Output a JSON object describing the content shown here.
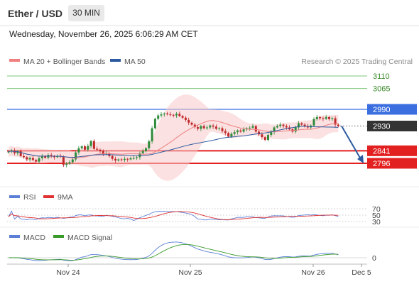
{
  "header": {
    "title": "Ether / USD",
    "timeframe": "30 MIN",
    "datetime": "Wednesday, November 26, 2025 6:06:29 AM CET"
  },
  "legend": {
    "main": [
      {
        "label": "MA 20 + Bollinger Bands",
        "color": "#f08080"
      },
      {
        "label": "MA 50",
        "color": "#2b5aa0"
      }
    ],
    "rsi": [
      {
        "label": "RSI",
        "color": "#5b7fd6"
      },
      {
        "label": "9MA",
        "color": "#e03030"
      }
    ],
    "macd": [
      {
        "label": "MACD",
        "color": "#5b7fd6"
      },
      {
        "label": "MACD Signal",
        "color": "#3a9a2a"
      }
    ]
  },
  "watermark": "Research © 2025 Trading Central",
  "colors": {
    "bull": "#2e8b3a",
    "bear": "#c0282a",
    "resistance": "#7dc47d",
    "pivot": "#3b6fe0",
    "support": "#e32020",
    "current": "#333333"
  },
  "chart_data": {
    "type": "candlestick",
    "ylim": [
      2700,
      3200
    ],
    "levels": [
      {
        "value": 3110,
        "label": "3110",
        "kind": "resistance"
      },
      {
        "value": 3065,
        "label": "3065",
        "kind": "resistance"
      },
      {
        "value": 2990,
        "label": "2990",
        "kind": "pivot"
      },
      {
        "value": 2930,
        "label": "2930",
        "kind": "current"
      },
      {
        "value": 2841,
        "label": "2841",
        "kind": "support"
      },
      {
        "value": 2796,
        "label": "2796",
        "kind": "support"
      }
    ],
    "x_ticks": [
      "Nov 24",
      "Nov 25",
      "Nov 26",
      "Dec 5"
    ],
    "closes": [
      2838,
      2842,
      2832,
      2840,
      2822,
      2818,
      2810,
      2815,
      2808,
      2802,
      2814,
      2822,
      2816,
      2826,
      2822,
      2818,
      2822,
      2820,
      2790,
      2795,
      2800,
      2810,
      2835,
      2850,
      2857,
      2845,
      2858,
      2876,
      2848,
      2845,
      2840,
      2830,
      2832,
      2822,
      2812,
      2806,
      2810,
      2808,
      2812,
      2810,
      2814,
      2815,
      2818,
      2832,
      2840,
      2850,
      2875,
      2922,
      2956,
      2968,
      2972,
      2975,
      2972,
      2970,
      2968,
      2974,
      2966,
      2960,
      2952,
      2942,
      2935,
      2926,
      2920,
      2930,
      2922,
      2925,
      2932,
      2928,
      2920,
      2922,
      2912,
      2905,
      2892,
      2902,
      2908,
      2914,
      2910,
      2918,
      2922,
      2924,
      2930,
      2910,
      2900,
      2890,
      2880,
      2898,
      2908,
      2925,
      2930,
      2935,
      2930,
      2925,
      2918,
      2910,
      2925,
      2940,
      2935,
      2930,
      2925,
      2932,
      2955,
      2962,
      2958,
      2956,
      2962,
      2955,
      2958,
      2935,
      2930
    ],
    "ma_periods": [
      20,
      50
    ],
    "rsi": {
      "levels": [
        70,
        50,
        30
      ],
      "period": 14
    },
    "macd": {
      "zero_label": "0"
    }
  }
}
